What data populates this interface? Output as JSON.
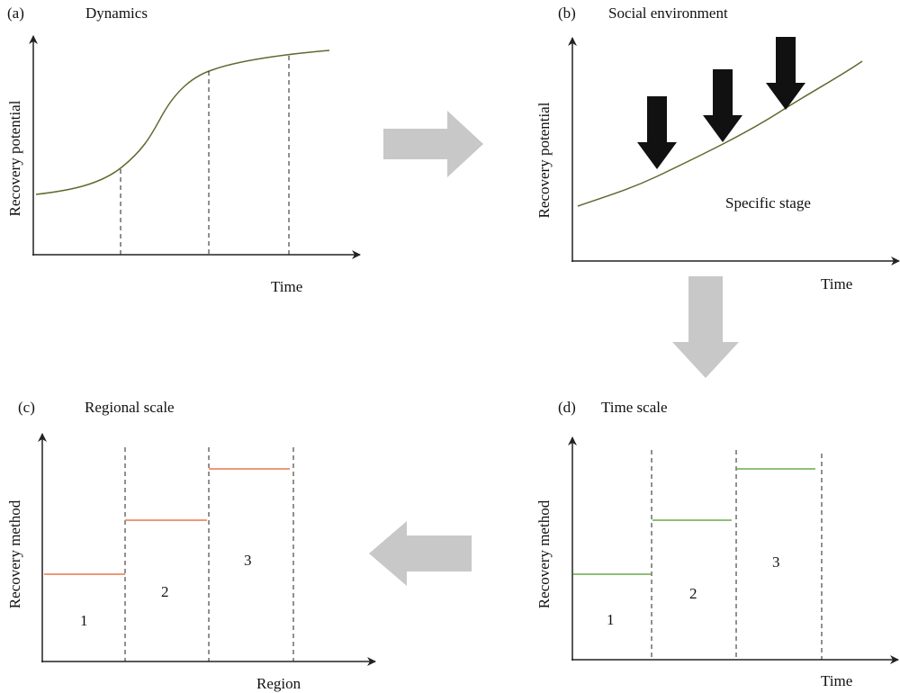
{
  "colors": {
    "curve": "#5b6b2e",
    "regional_level": "#e8764c",
    "time_level": "#6aa84f",
    "flow_arrow": "#c8c8c8",
    "pressure_arrow": "#111111"
  },
  "panels": {
    "a": {
      "letter": "(a)",
      "title": "Dynamics",
      "ylabel": "Recovery potential",
      "xlabel": "Time"
    },
    "b": {
      "letter": "(b)",
      "title": "Social environment",
      "ylabel": "Recovery potential",
      "xlabel": "Time",
      "annotation": "Specific stage"
    },
    "c": {
      "letter": "(c)",
      "title": "Regional scale",
      "ylabel": "Recovery method",
      "xlabel": "Region",
      "stages": [
        "1",
        "2",
        "3"
      ]
    },
    "d": {
      "letter": "(d)",
      "title": "Time scale",
      "ylabel": "Recovery method",
      "xlabel": "Time",
      "stages": [
        "1",
        "2",
        "3"
      ]
    }
  },
  "flow": [
    "a-to-b",
    "b-to-d",
    "d-to-c"
  ]
}
